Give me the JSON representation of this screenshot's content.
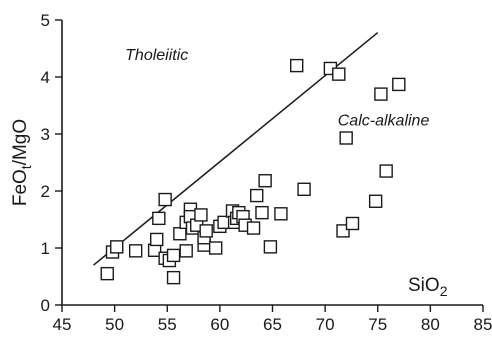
{
  "chart_data": {
    "type": "scatter",
    "xlabel": "SiO",
    "xlabel_sub": "2",
    "ylabel": "FeO",
    "ylabel_sub": "t",
    "ylabel_suffix": "/MgO",
    "xlim": [
      45,
      85
    ],
    "ylim": [
      0,
      5
    ],
    "xticks": [
      45,
      50,
      55,
      60,
      65,
      70,
      75,
      80,
      85
    ],
    "yticks": [
      0,
      1,
      2,
      3,
      4,
      5
    ],
    "grid": false,
    "annotations": [
      {
        "text": "Tholeiitic",
        "x": 51.0,
        "y": 4.3
      },
      {
        "text": "Calc-alkaline",
        "x": 71.2,
        "y": 3.15
      }
    ],
    "divider_line": {
      "x": [
        48.0,
        75.0
      ],
      "y": [
        0.7,
        4.78
      ]
    },
    "marker": "open-square",
    "points": [
      [
        49.3,
        0.55
      ],
      [
        49.8,
        0.93
      ],
      [
        50.2,
        1.02
      ],
      [
        52.0,
        0.95
      ],
      [
        53.8,
        0.96
      ],
      [
        54.0,
        1.15
      ],
      [
        54.2,
        1.52
      ],
      [
        54.8,
        1.85
      ],
      [
        54.8,
        0.82
      ],
      [
        55.2,
        0.78
      ],
      [
        55.6,
        0.87
      ],
      [
        55.6,
        0.48
      ],
      [
        56.2,
        1.25
      ],
      [
        56.8,
        0.95
      ],
      [
        56.8,
        1.45
      ],
      [
        57.2,
        1.68
      ],
      [
        57.2,
        1.55
      ],
      [
        57.4,
        1.35
      ],
      [
        57.8,
        1.4
      ],
      [
        58.2,
        1.58
      ],
      [
        58.5,
        1.05
      ],
      [
        58.5,
        1.18
      ],
      [
        58.7,
        1.3
      ],
      [
        59.6,
        1.0
      ],
      [
        60.0,
        1.38
      ],
      [
        60.4,
        1.45
      ],
      [
        61.2,
        1.65
      ],
      [
        61.4,
        1.45
      ],
      [
        61.6,
        1.52
      ],
      [
        61.8,
        1.62
      ],
      [
        62.2,
        1.55
      ],
      [
        62.4,
        1.4
      ],
      [
        63.2,
        1.35
      ],
      [
        63.5,
        1.92
      ],
      [
        64.3,
        2.18
      ],
      [
        64.0,
        1.62
      ],
      [
        64.8,
        1.02
      ],
      [
        65.8,
        1.6
      ],
      [
        67.3,
        4.2
      ],
      [
        68.0,
        2.03
      ],
      [
        70.5,
        4.15
      ],
      [
        71.3,
        4.05
      ],
      [
        71.7,
        1.3
      ],
      [
        72.0,
        2.93
      ],
      [
        72.6,
        1.43
      ],
      [
        74.8,
        1.82
      ],
      [
        75.3,
        3.7
      ],
      [
        75.8,
        2.35
      ],
      [
        77.0,
        3.87
      ]
    ]
  }
}
